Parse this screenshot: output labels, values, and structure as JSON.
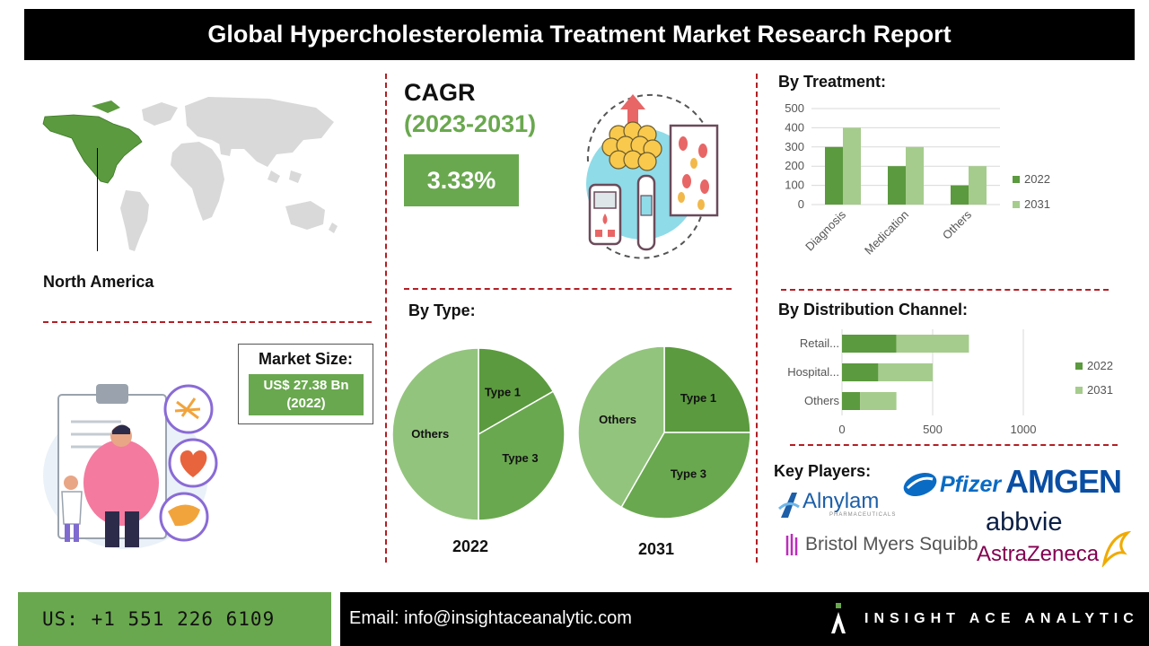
{
  "header": {
    "title": "Global Hypercholesterolemia Treatment Market Research Report"
  },
  "region": {
    "label": "North America"
  },
  "cagr": {
    "title": "CAGR",
    "years": "(2023-2031)",
    "value": "3.33%"
  },
  "market_size": {
    "label": "Market Size:",
    "value_line1": "US$ 27.38 Bn",
    "value_line2": "(2022)"
  },
  "sections": {
    "by_treatment": "By Treatment:",
    "by_type": "By Type:",
    "by_distribution": "By Distribution Channel:",
    "key_players": "Key Players:"
  },
  "key_players": [
    "Pfizer",
    "AMGEN",
    "Alnylam",
    "abbvie",
    "Bristol Myers Squibb",
    "AstraZeneca"
  ],
  "alnylam_sub": "PHARMACEUTICALS",
  "footer": {
    "phone": "US: +1 551 226 6109",
    "email": "Email: info@insightaceanalytic.com",
    "brand": "INSIGHT ACE ANALYTIC"
  },
  "colors": {
    "dark_green": "#5b9a3e",
    "light_green": "#a5cc8c",
    "mid_green": "#6aa84f",
    "pie_light": "#93c47d",
    "accent_red": "#b21f24"
  },
  "chart_data": [
    {
      "type": "bar",
      "title": "By Treatment:",
      "categories": [
        "Diagnosis",
        "Medication",
        "Others"
      ],
      "series": [
        {
          "name": "2022",
          "values": [
            300,
            200,
            100
          ]
        },
        {
          "name": "2031",
          "values": [
            400,
            300,
            200
          ]
        }
      ],
      "ylim": [
        0,
        500
      ],
      "yticks": [
        0,
        100,
        200,
        300,
        400,
        500
      ],
      "legend": "right"
    },
    {
      "type": "bar",
      "orientation": "horizontal",
      "stacked": true,
      "title": "By Distribution Channel:",
      "categories": [
        "Retail...",
        "Hospital...",
        "Others"
      ],
      "series": [
        {
          "name": "2022",
          "values": [
            300,
            200,
            100
          ]
        },
        {
          "name": "2031",
          "values": [
            400,
            300,
            200
          ]
        }
      ],
      "xlim": [
        0,
        1000
      ],
      "xticks": [
        0,
        500,
        1000
      ],
      "legend": "right"
    },
    {
      "type": "pie",
      "title": "2022",
      "labels": [
        "Type 1",
        "Type 3",
        "Others"
      ],
      "values": [
        16.7,
        33.3,
        50.0
      ]
    },
    {
      "type": "pie",
      "title": "2031",
      "labels": [
        "Type 1",
        "Type 3",
        "Others"
      ],
      "values": [
        25.0,
        33.3,
        41.7
      ]
    }
  ]
}
